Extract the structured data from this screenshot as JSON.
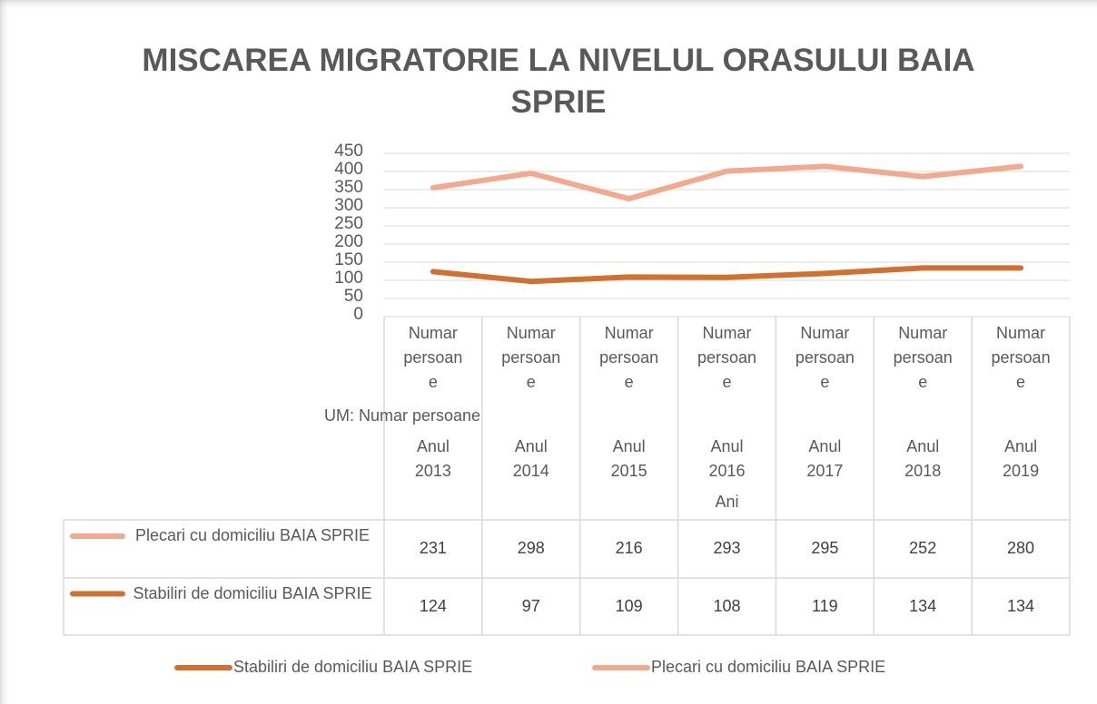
{
  "chart_data": {
    "type": "line",
    "stacked": true,
    "title": "MISCAREA MIGRATORIE LA NIVELUL ORASULUI BAIA SPRIE",
    "categories": [
      "Anul 2013",
      "Anul 2014",
      "Anul 2015",
      "Anul 2016",
      "Anul 2017",
      "Anul 2018",
      "Anul 2019"
    ],
    "category_sublabels": [
      "Numar persoane",
      "Numar persoane",
      "Numar persoane",
      "Numar persoane",
      "Numar persoane",
      "Numar persoane",
      "Numar persoane"
    ],
    "category_header": "UM: Numar persoane",
    "x_label": "Ani",
    "series": [
      {
        "name": "Stabiliri de domiciliu BAIA SPRIE",
        "color": "#d2702f",
        "values": [
          124,
          97,
          109,
          108,
          119,
          134,
          134
        ]
      },
      {
        "name": "Plecari cu domiciliu BAIA SPRIE",
        "color": "#f2aa8e",
        "values": [
          231,
          298,
          216,
          293,
          295,
          252,
          280
        ]
      }
    ],
    "ylim": [
      0,
      450
    ],
    "yticks": [
      0,
      50,
      100,
      150,
      200,
      250,
      300,
      350,
      400,
      450
    ],
    "grid": true,
    "data_table": true,
    "legend": "bottom"
  }
}
